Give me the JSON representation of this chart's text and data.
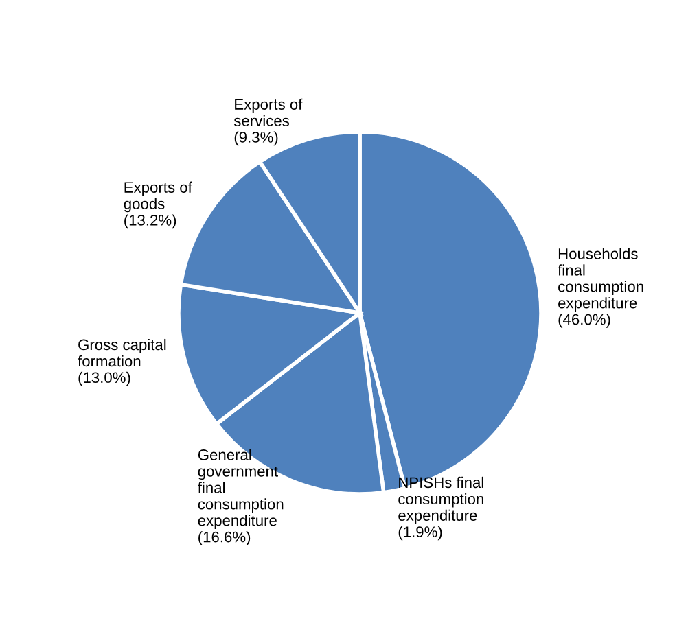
{
  "chart_data": {
    "type": "pie",
    "categories": [
      "Households final consumption expenditure",
      "NPISHs final consumption expenditure",
      "General government final consumption expenditure",
      "Gross capital formation",
      "Exports of goods",
      "Exports of services"
    ],
    "values": [
      46.0,
      1.9,
      16.6,
      13.0,
      13.2,
      9.3
    ],
    "value_labels": [
      "(46.0%)",
      "(1.9%)",
      "(16.6%)",
      "(13.0%)",
      "(13.2%)",
      "(9.3%)"
    ],
    "colors": [
      "#4f81bd",
      "#4f81bd",
      "#4f81bd",
      "#4f81bd",
      "#4f81bd",
      "#4f81bd"
    ],
    "legend": false
  }
}
